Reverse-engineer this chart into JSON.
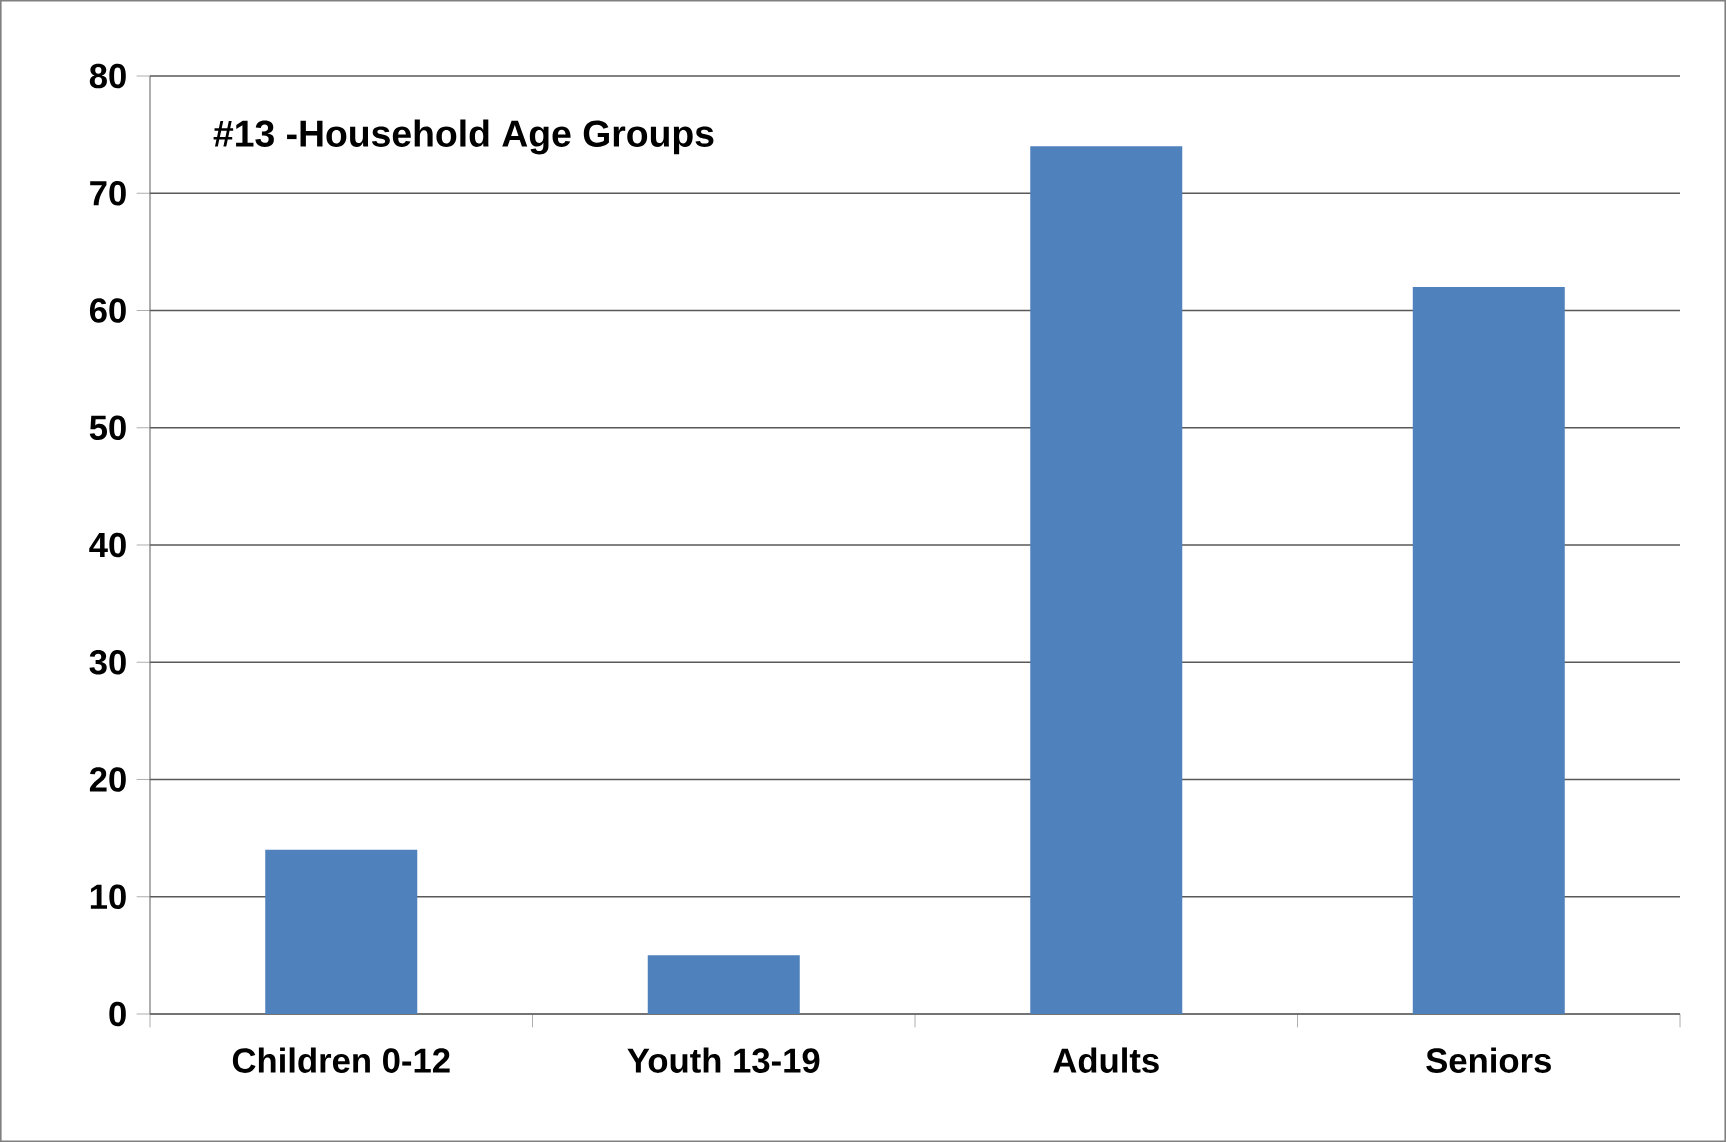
{
  "chart_data": {
    "type": "bar",
    "title": "#13 -Household Age Groups",
    "categories": [
      "Children 0-12",
      "Youth 13-19",
      "Adults",
      "Seniors"
    ],
    "values": [
      14,
      5,
      74,
      62
    ],
    "color": "#4f81bd",
    "ylim": [
      0,
      80
    ],
    "yticks": [
      0,
      10,
      20,
      30,
      40,
      50,
      60,
      70,
      80
    ],
    "grid": "y"
  }
}
